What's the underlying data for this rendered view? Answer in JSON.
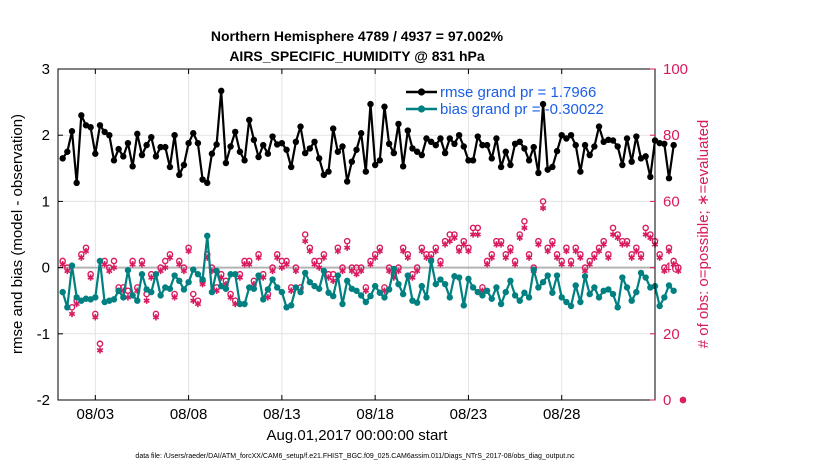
{
  "chart_data": {
    "type": "line",
    "title": "Northern Hemisphere 4789 / 4937 = 97.002%",
    "subtitle": "AIRS_SPECIFIC_HUMIDITY @ 831 hPa",
    "xlabel": "Aug.01,2017 00:00:00 start",
    "ylabel": "rmse and bias (model - observation)",
    "ylabel_right": "# of obs: o=possible; ∗=evaluated",
    "xlim": [
      1,
      33
    ],
    "ylim": [
      -2,
      3
    ],
    "ylim_right": [
      0,
      100
    ],
    "x_ticks": [
      3,
      8,
      13,
      18,
      23,
      28
    ],
    "x_tick_labels": [
      "08/03",
      "08/08",
      "08/13",
      "08/18",
      "08/23",
      "08/28"
    ],
    "y_ticks": [
      -2,
      -1,
      0,
      1,
      2,
      3
    ],
    "y_tick_labels": [
      "-2",
      "-1",
      "0",
      "1",
      "2",
      "3"
    ],
    "y_ticks_right": [
      0,
      20,
      40,
      60,
      80,
      100
    ],
    "y_tick_labels_right": [
      "0",
      "20",
      "40",
      "60",
      "80",
      "100"
    ],
    "grid": true,
    "legend_position": "top-right",
    "footer": "data file: /Users/raeder/DAI/ATM_forcXX/CAM6_setup/f.e21.FHIST_BGC.f09_025.CAM6assim.011/Diags_NTrS_2017-08/obs_diag_output.nc",
    "series": [
      {
        "name": "rmse grand pr = 1.7966",
        "color": "#000000",
        "marker": "filled-circle",
        "values": [
          1.65,
          1.75,
          2.06,
          1.28,
          2.3,
          2.15,
          2.12,
          1.72,
          2.15,
          2.05,
          2.0,
          1.62,
          1.79,
          1.68,
          1.88,
          1.53,
          2.02,
          1.7,
          1.85,
          1.97,
          1.68,
          1.82,
          1.82,
          1.52,
          2.0,
          1.4,
          1.55,
          1.88,
          2.03,
          1.88,
          1.33,
          1.28,
          1.72,
          1.86,
          2.67,
          1.58,
          1.83,
          2.05,
          1.75,
          1.62,
          2.23,
          1.93,
          1.67,
          1.85,
          1.72,
          1.98,
          1.86,
          1.88,
          1.78,
          1.52,
          1.9,
          2.13,
          1.73,
          1.8,
          1.9,
          1.65,
          1.4,
          1.45,
          2.1,
          1.75,
          1.83,
          1.3,
          1.6,
          1.78,
          2.03,
          1.45,
          2.47,
          1.55,
          1.62,
          2.43,
          1.87,
          1.73,
          2.17,
          1.53,
          2.07,
          1.8,
          1.75,
          1.7,
          1.95,
          1.9,
          1.85,
          1.95,
          1.73,
          1.95,
          1.87,
          2.0,
          1.83,
          1.62,
          1.62,
          1.98,
          1.85,
          1.85,
          1.65,
          1.95,
          1.52,
          1.75,
          1.55,
          1.87,
          1.9,
          1.8,
          1.62,
          1.82,
          1.43,
          2.47,
          1.48,
          1.52,
          1.76,
          2.0,
          1.95,
          2.0,
          1.85,
          1.45,
          1.85,
          1.7,
          1.83,
          2.13,
          1.9,
          1.93,
          1.92,
          1.83,
          1.55,
          1.95,
          1.6,
          1.98,
          1.65,
          1.68,
          1.37,
          1.92,
          1.88,
          1.87,
          1.35,
          1.85
        ]
      },
      {
        "name": "bias grand pr = -0.30022",
        "color": "#008080",
        "marker": "filled-circle",
        "values": [
          -0.37,
          -0.6,
          0.03,
          -0.45,
          -0.5,
          -0.47,
          -0.48,
          -0.45,
          0.1,
          -0.52,
          -0.5,
          -0.48,
          -0.35,
          -0.45,
          -0.04,
          -0.42,
          -0.5,
          -0.1,
          -0.33,
          -0.37,
          -0.1,
          -0.42,
          -0.3,
          -0.32,
          -0.12,
          -0.2,
          -0.33,
          -0.22,
          -0.03,
          -0.1,
          -0.18,
          0.48,
          -0.37,
          -0.05,
          -0.28,
          -0.32,
          -0.1,
          -0.1,
          -0.55,
          -0.55,
          -0.3,
          -0.32,
          -0.12,
          -0.48,
          -0.33,
          -0.18,
          -0.3,
          -0.37,
          -0.6,
          -0.57,
          -0.3,
          -0.37,
          -0.08,
          -0.22,
          -0.28,
          -0.32,
          -0.05,
          -0.38,
          -0.43,
          -0.12,
          -0.55,
          -0.2,
          -0.32,
          -0.35,
          -0.42,
          -0.52,
          -0.43,
          -0.28,
          -0.38,
          -0.45,
          -0.33,
          -0.02,
          -0.25,
          -0.4,
          -0.12,
          -0.5,
          -0.53,
          -0.28,
          -0.45,
          0.1,
          -0.25,
          -0.18,
          -0.25,
          -0.45,
          -0.13,
          -0.15,
          -0.57,
          -0.17,
          -0.3,
          -0.37,
          -0.42,
          -0.35,
          -0.47,
          -0.3,
          -0.55,
          -0.37,
          -0.2,
          -0.42,
          -0.5,
          -0.38,
          -0.45,
          -0.03,
          -0.3,
          -0.22,
          -0.12,
          -0.38,
          -0.12,
          -0.45,
          -0.52,
          -0.58,
          -0.27,
          -0.52,
          -0.13,
          -0.4,
          -0.3,
          -0.45,
          -0.35,
          -0.33,
          -0.4,
          -0.6,
          -0.15,
          -0.3,
          -0.5,
          -0.37,
          -0.08,
          -0.15,
          -0.3,
          -0.28,
          -0.58,
          -0.45,
          -0.27,
          -0.35
        ]
      },
      {
        "name": "# of obs possible",
        "axis": "right",
        "color": "#d81b60",
        "marker": "open-circle",
        "values": [
          42,
          40,
          28,
          30,
          44,
          46,
          38,
          26,
          17,
          42,
          40,
          42,
          34,
          34,
          33,
          42,
          34,
          42,
          32,
          38,
          26,
          40,
          42,
          44,
          32,
          42,
          40,
          46,
          32,
          30,
          36,
          44,
          40,
          34,
          38,
          36,
          32,
          30,
          38,
          42,
          42,
          36,
          44,
          38,
          32,
          40,
          44,
          42,
          42,
          34,
          40,
          34,
          50,
          46,
          42,
          42,
          44,
          38,
          38,
          46,
          40,
          48,
          40,
          40,
          40,
          34,
          42,
          44,
          46,
          34,
          40,
          38,
          40,
          46,
          44,
          38,
          40,
          46,
          44,
          44,
          46,
          42,
          48,
          50,
          50,
          46,
          48,
          46,
          52,
          52,
          34,
          42,
          44,
          48,
          48,
          44,
          46,
          42,
          50,
          54,
          44,
          40,
          48,
          60,
          46,
          48,
          44,
          42,
          46,
          42,
          46,
          44,
          40,
          42,
          44,
          46,
          48,
          44,
          52,
          50,
          48,
          48,
          44,
          46,
          44,
          52,
          50,
          48,
          44,
          40,
          46,
          42,
          40,
          0
        ]
      },
      {
        "name": "# of obs evaluated",
        "axis": "right",
        "color": "#d81b60",
        "marker": "asterisk",
        "values": [
          41,
          39,
          26,
          29,
          43,
          45,
          37,
          25,
          15,
          41,
          39,
          40,
          33,
          33,
          31,
          41,
          33,
          41,
          30,
          37,
          25,
          39,
          40,
          43,
          31,
          41,
          39,
          45,
          30,
          29,
          35,
          43,
          39,
          33,
          37,
          35,
          31,
          29,
          37,
          41,
          41,
          35,
          43,
          37,
          31,
          39,
          43,
          40,
          41,
          33,
          39,
          33,
          48,
          45,
          41,
          40,
          43,
          37,
          36,
          45,
          39,
          46,
          39,
          38,
          39,
          33,
          41,
          43,
          45,
          33,
          39,
          37,
          39,
          45,
          43,
          37,
          39,
          45,
          43,
          43,
          45,
          41,
          47,
          48,
          49,
          45,
          47,
          45,
          50,
          50,
          33,
          41,
          43,
          47,
          47,
          43,
          45,
          41,
          49,
          52,
          43,
          39,
          47,
          58,
          45,
          47,
          43,
          41,
          45,
          41,
          45,
          43,
          39,
          41,
          43,
          45,
          47,
          43,
          50,
          49,
          47,
          47,
          43,
          45,
          43,
          50,
          49,
          47,
          43,
          39,
          45,
          41,
          39,
          0
        ]
      }
    ]
  }
}
